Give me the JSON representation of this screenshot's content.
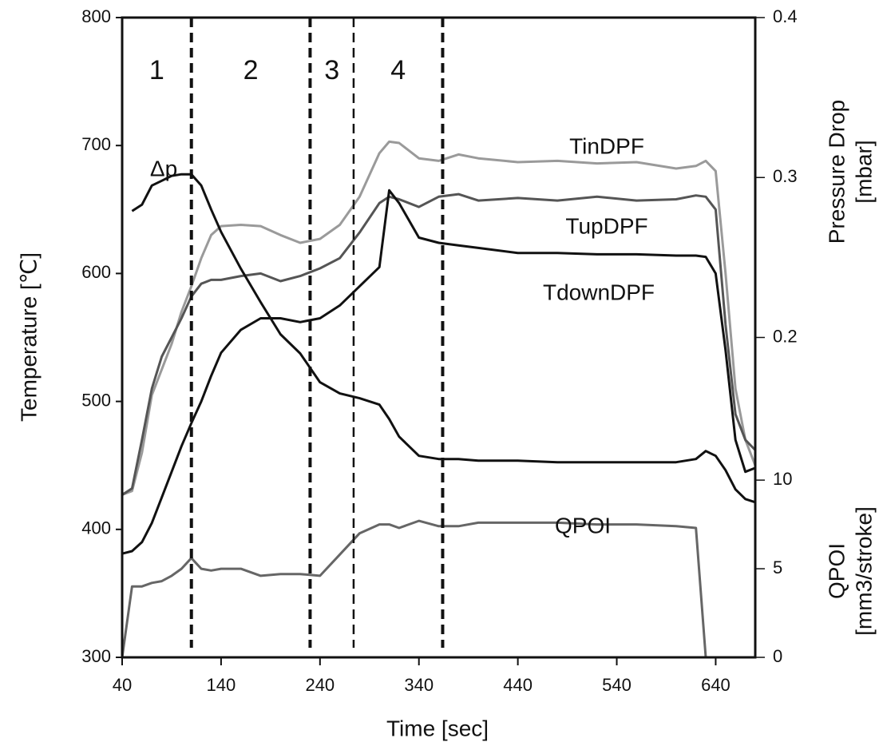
{
  "chart_data": {
    "type": "line",
    "xlabel": "Time [sec]",
    "ylabel": "Temperature [℃]",
    "y2label": [
      "Pressure Drop",
      "[mbar]"
    ],
    "y3label": [
      "QPOI",
      "[mm3/stroke]"
    ],
    "xlim": [
      40,
      680
    ],
    "xticks": [
      40,
      140,
      240,
      340,
      440,
      540,
      640
    ],
    "ylim": [
      300,
      800
    ],
    "yticks": [
      300,
      400,
      500,
      600,
      700,
      800
    ],
    "y2lim": [
      0,
      0.4
    ],
    "y2ticks": [
      0.2,
      0.3,
      0.4
    ],
    "y3lim": [
      0,
      36.1
    ],
    "y3ticks": [
      0,
      5,
      10
    ],
    "phase_lines": [
      110,
      230,
      274,
      364
    ],
    "phase_labels": [
      "1",
      "2",
      "3",
      "4"
    ],
    "x": [
      40,
      50,
      60,
      70,
      80,
      90,
      100,
      110,
      120,
      130,
      140,
      160,
      180,
      200,
      220,
      240,
      260,
      280,
      300,
      310,
      320,
      340,
      360,
      380,
      400,
      440,
      480,
      520,
      560,
      600,
      620,
      630,
      640,
      650,
      660,
      670,
      680
    ],
    "series": [
      {
        "name": "TinDPF",
        "color": "#9a9a9a",
        "axis": "y",
        "values": [
          427,
          430,
          460,
          505,
          525,
          545,
          570,
          590,
          612,
          630,
          637,
          638,
          637,
          630,
          624,
          627,
          638,
          660,
          694,
          703,
          702,
          690,
          688,
          693,
          690,
          687,
          688,
          686,
          687,
          682,
          684,
          688,
          680,
          600,
          510,
          470,
          450
        ]
      },
      {
        "name": "TupDPF",
        "color": "#555555",
        "axis": "y",
        "values": [
          427,
          432,
          470,
          510,
          535,
          550,
          565,
          582,
          592,
          595,
          595,
          598,
          600,
          594,
          598,
          604,
          612,
          632,
          655,
          660,
          658,
          652,
          660,
          662,
          657,
          659,
          657,
          660,
          657,
          658,
          661,
          660,
          650,
          560,
          490,
          470,
          462
        ]
      },
      {
        "name": "TdownDPF",
        "color": "#111111",
        "axis": "y",
        "values": [
          381,
          383,
          390,
          405,
          425,
          445,
          465,
          483,
          500,
          520,
          538,
          556,
          565,
          565,
          562,
          565,
          575,
          590,
          605,
          665,
          655,
          628,
          624,
          622,
          620,
          616,
          616,
          615,
          615,
          614,
          614,
          613,
          600,
          540,
          470,
          445,
          448
        ]
      },
      {
        "name": "Δp",
        "color": "#111111",
        "axis": "y2",
        "values": [
          null,
          0.279,
          0.283,
          0.295,
          0.298,
          0.301,
          0.302,
          0.302,
          0.295,
          0.28,
          0.266,
          0.243,
          0.222,
          0.202,
          0.19,
          0.172,
          0.165,
          0.162,
          0.158,
          0.149,
          0.138,
          0.126,
          0.124,
          0.124,
          0.123,
          0.123,
          0.122,
          0.122,
          0.122,
          0.122,
          0.124,
          0.129,
          0.126,
          0.117,
          0.105,
          0.099,
          0.097
        ]
      },
      {
        "name": "QPOI",
        "color": "#666666",
        "axis": "y3",
        "values": [
          0,
          4.0,
          4.0,
          4.2,
          4.3,
          4.6,
          5.0,
          5.6,
          5.0,
          4.9,
          5.0,
          5.0,
          4.6,
          4.7,
          4.7,
          4.6,
          5.8,
          7.0,
          7.5,
          7.5,
          7.3,
          7.7,
          7.4,
          7.4,
          7.6,
          7.6,
          7.6,
          7.5,
          7.5,
          7.4,
          7.3,
          0,
          0,
          0,
          0,
          0,
          0
        ]
      }
    ]
  }
}
